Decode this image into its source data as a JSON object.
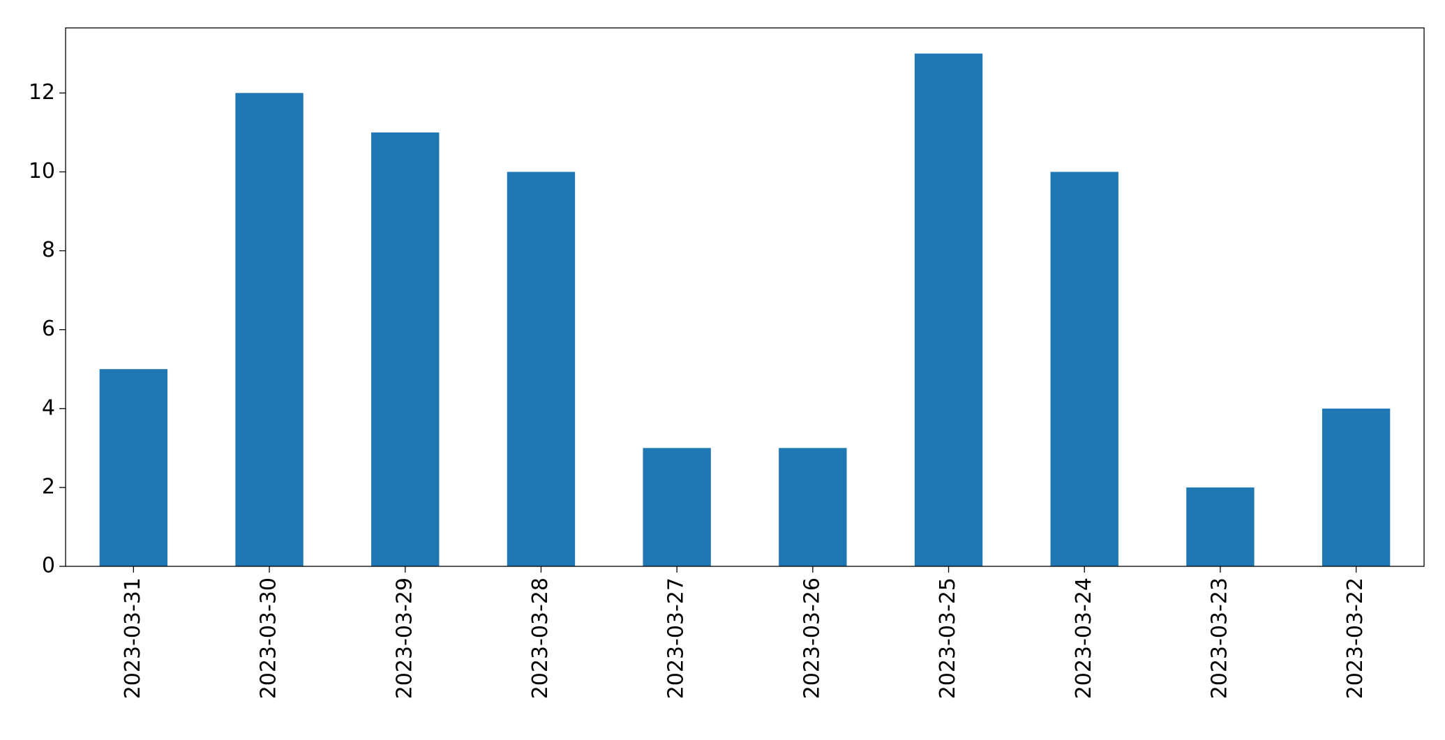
{
  "chart_data": {
    "type": "bar",
    "categories": [
      "2023-03-31",
      "2023-03-30",
      "2023-03-29",
      "2023-03-28",
      "2023-03-27",
      "2023-03-26",
      "2023-03-25",
      "2023-03-24",
      "2023-03-23",
      "2023-03-22"
    ],
    "values": [
      5,
      12,
      11,
      10,
      3,
      3,
      13,
      10,
      2,
      4
    ],
    "color": "#1f77b4",
    "ylim": [
      0,
      13.65
    ],
    "yticks": [
      0,
      2,
      4,
      6,
      8,
      10,
      12
    ],
    "grid": false
  }
}
